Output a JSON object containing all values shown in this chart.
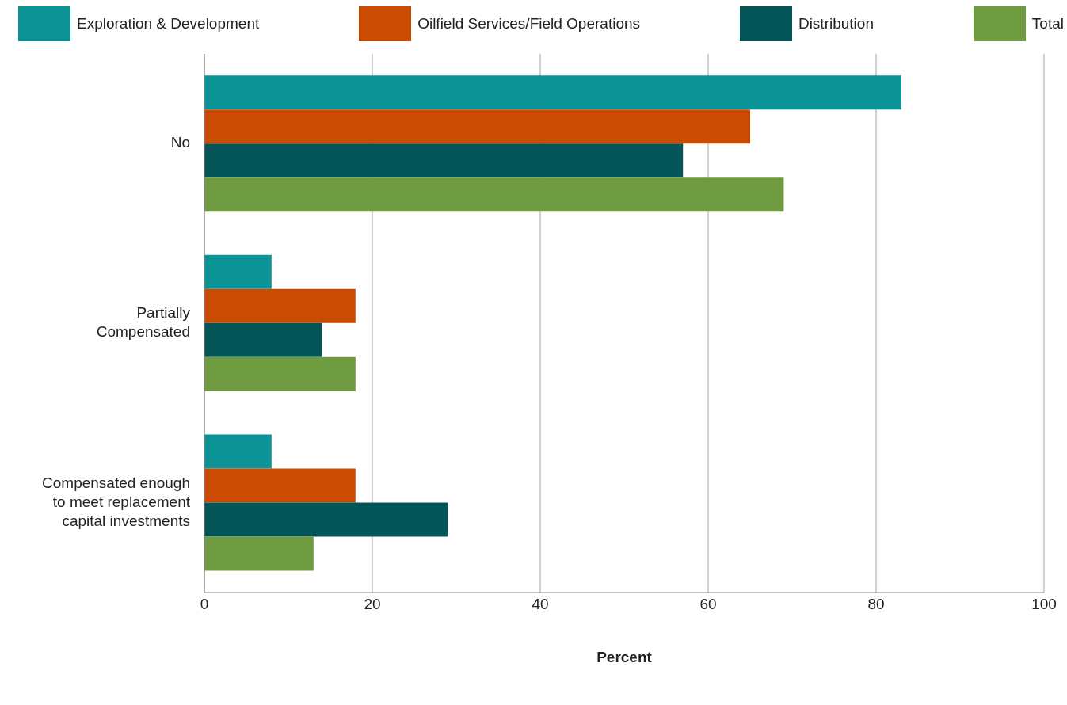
{
  "chart_data": {
    "type": "bar",
    "orientation": "horizontal",
    "xlabel": "Percent",
    "categories": [
      "No",
      "Partially Compensated",
      "Compensated enough to meet replacement capital investments"
    ],
    "series": [
      {
        "name": "Exploration & Development",
        "color": "#0b9396",
        "values": [
          83,
          8,
          8
        ]
      },
      {
        "name": "Oilfield Services/Field Operations",
        "color": "#ca4b02",
        "values": [
          65,
          18,
          18
        ]
      },
      {
        "name": "Distribution",
        "color": "#045558",
        "values": [
          57,
          14,
          29
        ]
      },
      {
        "name": "Total",
        "color": "#6e9a40",
        "values": [
          69,
          18,
          13
        ]
      }
    ],
    "xlim": [
      0,
      100
    ],
    "xticks": [
      0,
      20,
      40,
      60,
      80,
      100
    ],
    "grid": "x",
    "legend": "top"
  }
}
